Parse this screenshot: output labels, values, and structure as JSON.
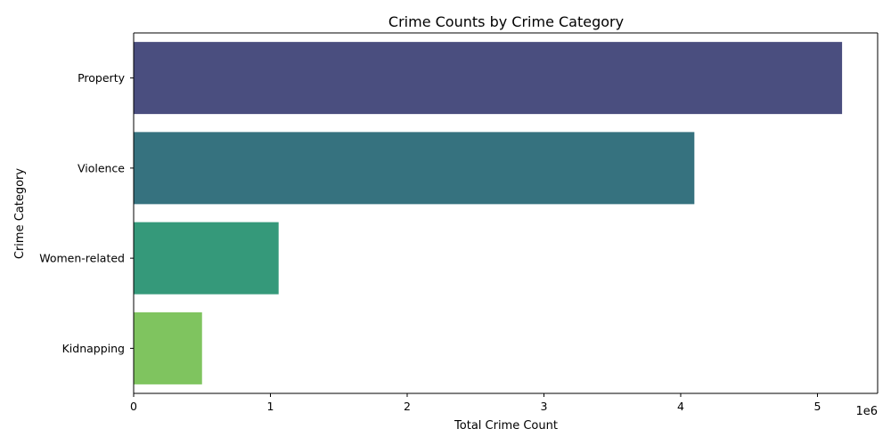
{
  "chart_data": {
    "type": "bar",
    "orientation": "horizontal",
    "title": "Crime Counts by Crime Category",
    "xlabel": "Total Crime Count",
    "ylabel": "Crime Category",
    "x_offset_label": "1e6",
    "xlim": [
      0,
      5440000
    ],
    "x_ticks": [
      {
        "value": 0,
        "label": "0"
      },
      {
        "value": 1000000,
        "label": "1"
      },
      {
        "value": 2000000,
        "label": "2"
      },
      {
        "value": 3000000,
        "label": "3"
      },
      {
        "value": 4000000,
        "label": "4"
      },
      {
        "value": 5000000,
        "label": "5"
      }
    ],
    "categories": [
      "Property",
      "Violence",
      "Women-related",
      "Kidnapping"
    ],
    "values": [
      5180000,
      4100000,
      1060000,
      500000
    ],
    "colors": [
      "#4a4e7f",
      "#36727f",
      "#35997a",
      "#7fc45f"
    ],
    "grid": false,
    "legend": "none"
  }
}
